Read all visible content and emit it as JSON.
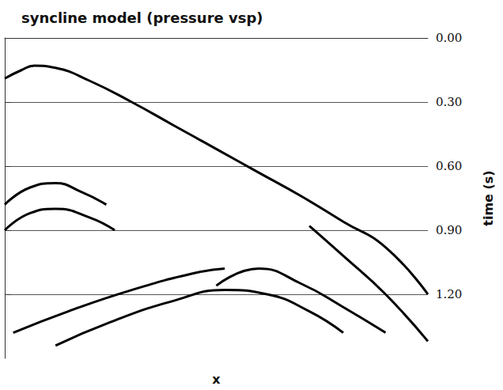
{
  "chart_data": {
    "type": "line",
    "title": "syncline model (pressure vsp)",
    "xlabel": "x",
    "ylabel": "time (s)",
    "xlim": [
      0,
      100
    ],
    "ylim": [
      0,
      1.5
    ],
    "yticks": [
      {
        "value": 0,
        "label": "0.00"
      },
      {
        "value": 0.3,
        "label": "0.30"
      },
      {
        "value": 0.6,
        "label": "0.60"
      },
      {
        "value": 0.9,
        "label": "0.90"
      },
      {
        "value": 1.2,
        "label": "1.20"
      }
    ],
    "grid": true,
    "tick_labels": "y",
    "color": "#000000",
    "series": [
      {
        "x": [
          0,
          4,
          7,
          12,
          20,
          30,
          40,
          50,
          60,
          70,
          80,
          90,
          100
        ],
        "values": [
          0.19,
          0.15,
          0.13,
          0.14,
          0.2,
          0.3,
          0.41,
          0.52,
          0.63,
          0.74,
          0.86,
          0.98,
          1.2
        ]
      },
      {
        "x": [
          72,
          80,
          90,
          100
        ],
        "values": [
          0.88,
          1.02,
          1.2,
          1.42
        ]
      },
      {
        "x": [
          0,
          6,
          12,
          18,
          24
        ],
        "values": [
          0.78,
          0.7,
          0.68,
          0.72,
          0.78
        ]
      },
      {
        "x": [
          0,
          6,
          12,
          20,
          26
        ],
        "values": [
          0.9,
          0.82,
          0.8,
          0.84,
          0.9
        ]
      },
      {
        "x": [
          2,
          15,
          30,
          45,
          52
        ],
        "values": [
          1.38,
          1.28,
          1.18,
          1.1,
          1.08
        ]
      },
      {
        "x": [
          12,
          25,
          40,
          52,
          62,
          72,
          80
        ],
        "values": [
          1.44,
          1.33,
          1.23,
          1.18,
          1.2,
          1.28,
          1.38
        ]
      },
      {
        "x": [
          50,
          60,
          70,
          80,
          90
        ],
        "values": [
          1.16,
          1.08,
          1.15,
          1.26,
          1.38
        ]
      }
    ]
  }
}
